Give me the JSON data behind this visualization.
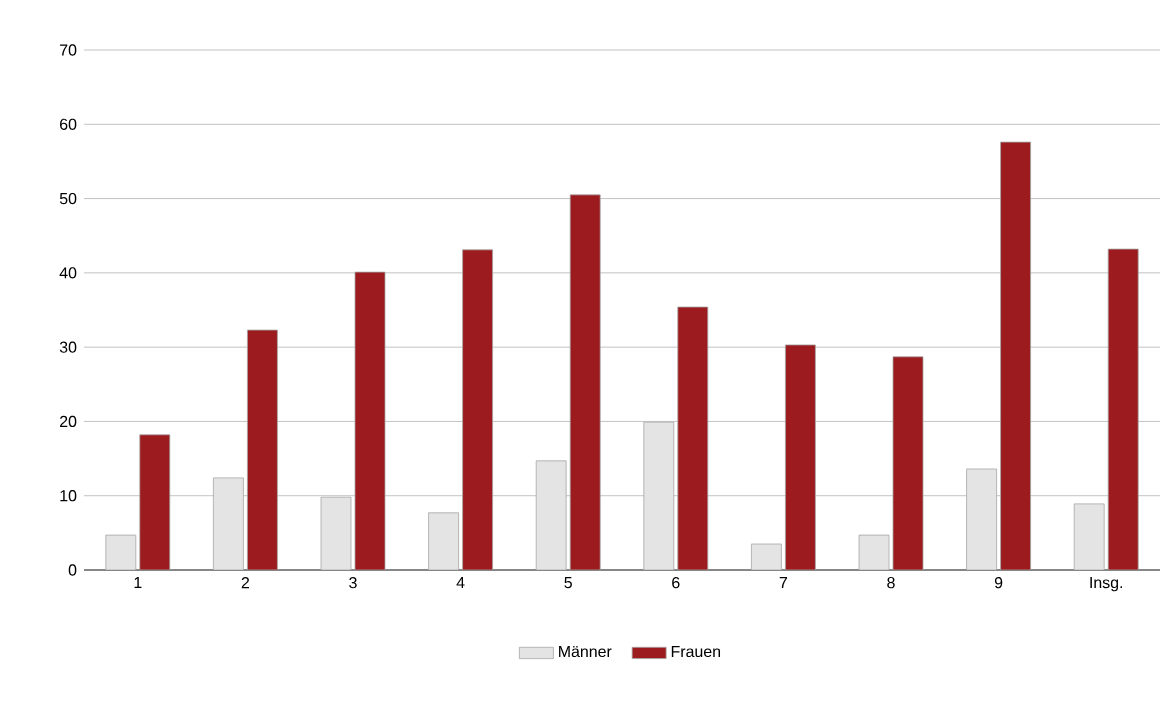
{
  "chart_data": {
    "type": "bar",
    "categories": [
      "1",
      "2",
      "3",
      "4",
      "5",
      "6",
      "7",
      "8",
      "9",
      "Insg."
    ],
    "series": [
      {
        "name": "Männer",
        "color": "#e4e4e4",
        "values": [
          4.7,
          12.4,
          9.8,
          7.7,
          14.7,
          19.9,
          3.5,
          4.7,
          13.6,
          8.9
        ]
      },
      {
        "name": "Frauen",
        "color": "#9b1b1e",
        "values": [
          18.2,
          32.3,
          40.1,
          43.1,
          50.5,
          35.4,
          30.3,
          28.7,
          57.6,
          43.2
        ]
      }
    ],
    "ylim": [
      0,
      70
    ],
    "yticks": [
      0,
      10,
      20,
      30,
      40,
      50,
      60,
      70
    ],
    "grid": "y",
    "legend": "bottom"
  }
}
